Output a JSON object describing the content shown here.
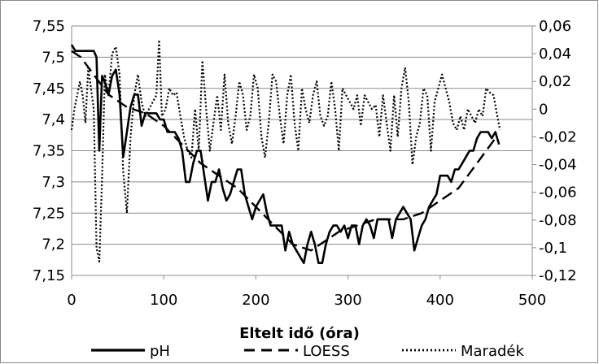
{
  "chart_data": {
    "type": "line",
    "title": "",
    "xlabel": "Eltelt idő (óra)",
    "ylabel_left": "",
    "ylabel_right": "",
    "xlim": [
      0,
      500
    ],
    "ylim_left": [
      7.15,
      7.55
    ],
    "ylim_right": [
      -0.12,
      0.06
    ],
    "x_ticks": [
      0,
      100,
      200,
      300,
      400,
      500
    ],
    "x_tick_labels": [
      "0",
      "100",
      "200",
      "300",
      "400",
      "500"
    ],
    "y_left_ticks": [
      7.15,
      7.2,
      7.25,
      7.3,
      7.35,
      7.4,
      7.45,
      7.5,
      7.55
    ],
    "y_left_tick_labels": [
      "7,15",
      "7,2",
      "7,25",
      "7,3",
      "7,35",
      "7,4",
      "7,45",
      "7,5",
      "7,55"
    ],
    "y_right_ticks": [
      -0.12,
      -0.1,
      -0.08,
      -0.06,
      -0.04,
      -0.02,
      0,
      0.02,
      0.04,
      0.06
    ],
    "y_right_tick_labels": [
      "-0,12",
      "-0,1",
      "-0,08",
      "-0,06",
      "-0,04",
      "-0,02",
      "0",
      "0,02",
      "0,04",
      "0,06"
    ],
    "grid": "horizontal",
    "legend_position": "bottom",
    "series": [
      {
        "name": "pH",
        "axis": "left",
        "style": "solid",
        "color": "#000000",
        "x": [
          0,
          4,
          8,
          12,
          16,
          20,
          24,
          27,
          30,
          33,
          36,
          40,
          44,
          48,
          52,
          56,
          60,
          64,
          68,
          72,
          76,
          80,
          84,
          88,
          92,
          96,
          100,
          104,
          108,
          112,
          116,
          120,
          124,
          128,
          132,
          136,
          140,
          144,
          148,
          152,
          156,
          160,
          164,
          168,
          172,
          176,
          180,
          184,
          188,
          192,
          196,
          200,
          204,
          208,
          212,
          216,
          220,
          224,
          228,
          232,
          236,
          240,
          244,
          248,
          252,
          256,
          260,
          264,
          268,
          272,
          276,
          280,
          284,
          288,
          292,
          296,
          300,
          304,
          308,
          312,
          316,
          320,
          324,
          328,
          332,
          336,
          340,
          344,
          348,
          352,
          356,
          360,
          364,
          368,
          372,
          376,
          380,
          384,
          388,
          392,
          396,
          400,
          404,
          408,
          412,
          416,
          420,
          424,
          428,
          432,
          436,
          440,
          444,
          448,
          452,
          456,
          460,
          464
        ],
        "y": [
          7.52,
          7.51,
          7.51,
          7.51,
          7.51,
          7.51,
          7.51,
          7.5,
          7.35,
          7.47,
          7.46,
          7.44,
          7.47,
          7.48,
          7.44,
          7.34,
          7.38,
          7.42,
          7.44,
          7.44,
          7.39,
          7.41,
          7.41,
          7.41,
          7.41,
          7.4,
          7.4,
          7.38,
          7.38,
          7.38,
          7.37,
          7.35,
          7.3,
          7.3,
          7.33,
          7.35,
          7.35,
          7.31,
          7.27,
          7.3,
          7.3,
          7.32,
          7.29,
          7.27,
          7.28,
          7.3,
          7.32,
          7.32,
          7.28,
          7.26,
          7.24,
          7.26,
          7.27,
          7.28,
          7.25,
          7.23,
          7.23,
          7.23,
          7.23,
          7.19,
          7.22,
          7.2,
          7.19,
          7.18,
          7.17,
          7.2,
          7.22,
          7.2,
          7.17,
          7.17,
          7.2,
          7.22,
          7.23,
          7.23,
          7.22,
          7.23,
          7.21,
          7.23,
          7.23,
          7.2,
          7.23,
          7.24,
          7.23,
          7.21,
          7.24,
          7.24,
          7.24,
          7.24,
          7.21,
          7.24,
          7.25,
          7.26,
          7.25,
          7.24,
          7.19,
          7.21,
          7.23,
          7.24,
          7.26,
          7.27,
          7.28,
          7.31,
          7.31,
          7.31,
          7.3,
          7.32,
          7.32,
          7.33,
          7.34,
          7.35,
          7.35,
          7.37,
          7.38,
          7.38,
          7.38,
          7.37,
          7.38,
          7.36
        ]
      },
      {
        "name": "LOESS",
        "axis": "left",
        "style": "dashed",
        "color": "#000000",
        "x": [
          0,
          10,
          20,
          30,
          40,
          50,
          60,
          70,
          80,
          90,
          100,
          110,
          120,
          130,
          140,
          150,
          160,
          170,
          180,
          190,
          200,
          210,
          220,
          230,
          240,
          250,
          260,
          270,
          280,
          290,
          300,
          310,
          320,
          330,
          340,
          350,
          360,
          370,
          380,
          390,
          400,
          410,
          420,
          430,
          440,
          450,
          460,
          464
        ],
        "y": [
          7.51,
          7.5,
          7.48,
          7.46,
          7.44,
          7.43,
          7.42,
          7.415,
          7.41,
          7.4,
          7.39,
          7.375,
          7.36,
          7.345,
          7.33,
          7.32,
          7.31,
          7.3,
          7.29,
          7.275,
          7.26,
          7.245,
          7.23,
          7.215,
          7.2,
          7.195,
          7.19,
          7.2,
          7.21,
          7.22,
          7.225,
          7.23,
          7.235,
          7.24,
          7.24,
          7.24,
          7.24,
          7.245,
          7.25,
          7.26,
          7.27,
          7.28,
          7.29,
          7.31,
          7.33,
          7.35,
          7.37,
          7.37
        ]
      },
      {
        "name": "Maradék",
        "axis": "right",
        "style": "dotted",
        "color": "#000000",
        "x": [
          0,
          3,
          6,
          9,
          12,
          15,
          18,
          21,
          24,
          27,
          30,
          33,
          36,
          40,
          44,
          48,
          52,
          56,
          60,
          64,
          68,
          72,
          76,
          80,
          84,
          88,
          92,
          95,
          98,
          102,
          106,
          110,
          114,
          118,
          122,
          126,
          130,
          134,
          138,
          142,
          146,
          150,
          154,
          158,
          162,
          166,
          170,
          174,
          178,
          182,
          186,
          190,
          194,
          198,
          202,
          206,
          210,
          214,
          218,
          222,
          226,
          230,
          234,
          238,
          242,
          246,
          250,
          254,
          258,
          262,
          266,
          270,
          274,
          278,
          282,
          286,
          290,
          294,
          298,
          302,
          306,
          310,
          314,
          318,
          322,
          326,
          330,
          334,
          338,
          342,
          346,
          350,
          354,
          358,
          362,
          366,
          370,
          374,
          378,
          382,
          386,
          390,
          394,
          398,
          402,
          406,
          410,
          414,
          418,
          422,
          426,
          430,
          434,
          438,
          442,
          446,
          450,
          454,
          458,
          462,
          465
        ],
        "y": [
          -0.015,
          0.0,
          0.01,
          0.02,
          0.01,
          -0.01,
          0.03,
          0.015,
          0.0,
          -0.1,
          -0.11,
          -0.05,
          0.025,
          0.01,
          0.04,
          0.045,
          0.025,
          -0.045,
          -0.075,
          -0.02,
          0.01,
          0.025,
          0.005,
          -0.005,
          0.0,
          0.005,
          0.01,
          0.05,
          -0.005,
          0.0,
          0.015,
          0.01,
          0.012,
          -0.005,
          -0.02,
          -0.03,
          -0.035,
          0.0,
          -0.03,
          0.035,
          0.0,
          -0.03,
          -0.01,
          0.01,
          -0.015,
          0.025,
          -0.01,
          -0.025,
          -0.005,
          0.02,
          0.01,
          -0.015,
          -0.005,
          0.025,
          0.015,
          -0.02,
          -0.035,
          -0.01,
          0.025,
          0.02,
          -0.005,
          -0.025,
          0.01,
          0.025,
          -0.01,
          -0.03,
          0.015,
          0.0,
          -0.01,
          0.01,
          0.02,
          -0.005,
          -0.012,
          -0.005,
          0.02,
          0.0,
          -0.03,
          0.015,
          0.01,
          0.005,
          0.0,
          0.01,
          -0.012,
          0.01,
          0.005,
          0.0,
          0.003,
          -0.02,
          0.01,
          -0.01,
          -0.03,
          0.01,
          -0.02,
          0.015,
          0.03,
          0.005,
          -0.04,
          -0.02,
          -0.01,
          0.015,
          0.01,
          -0.03,
          0.005,
          0.015,
          0.025,
          0.015,
          0.005,
          -0.01,
          -0.015,
          -0.005,
          -0.015,
          0.0,
          -0.005,
          -0.01,
          0.0,
          -0.005,
          0.015,
          0.012,
          0.01,
          -0.005,
          -0.015
        ]
      }
    ]
  }
}
